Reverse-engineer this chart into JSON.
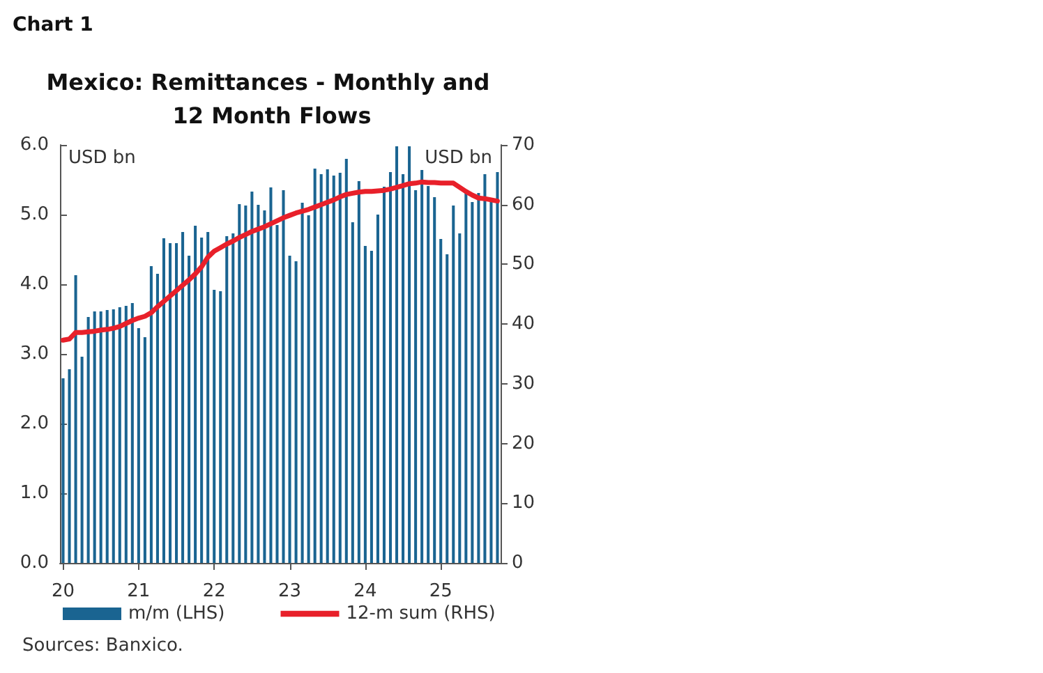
{
  "chart_data": {
    "type": "bar",
    "title": "Mexico: Remittances - Monthly and 12 Month Flows",
    "subtitle": "Chart 1",
    "ylabel": "USD bn",
    "y2label": "USD bn",
    "annotations": [
      "Sources: Banxico."
    ],
    "categories": [
      "20",
      null,
      null,
      null,
      null,
      null,
      null,
      null,
      null,
      null,
      null,
      null,
      "21",
      null,
      null,
      null,
      null,
      null,
      null,
      null,
      null,
      null,
      null,
      null,
      "22",
      null,
      null,
      null,
      null,
      null,
      null,
      null,
      null,
      null,
      null,
      null,
      "23",
      null,
      null,
      null,
      null,
      null,
      null,
      null,
      null,
      null,
      null,
      null,
      "24",
      null,
      null,
      null,
      null,
      null,
      null,
      null,
      null,
      null,
      null,
      null,
      "25",
      null,
      null,
      null,
      null,
      null,
      null,
      null,
      null,
      null
    ],
    "series": [
      {
        "name": "m/m (LHS)",
        "color": "#1a6491",
        "values": [
          2.65,
          2.78,
          4.13,
          2.96,
          3.53,
          3.61,
          3.61,
          3.63,
          3.64,
          3.67,
          3.69,
          3.73,
          3.37,
          3.24,
          4.26,
          4.15,
          4.66,
          4.59,
          4.59,
          4.75,
          4.41,
          4.84,
          4.67,
          4.75,
          3.92,
          3.9,
          4.69,
          4.73,
          5.15,
          5.13,
          5.33,
          5.14,
          5.06,
          5.39,
          4.85,
          5.35,
          4.41,
          4.33,
          5.17,
          4.99,
          5.66,
          5.58,
          5.65,
          5.56,
          5.6,
          5.8,
          4.89,
          5.48,
          4.55,
          4.48,
          5.0,
          5.4,
          5.61,
          5.98,
          5.58,
          5.98,
          5.35,
          5.64,
          5.41,
          5.25,
          4.65,
          4.43,
          5.13,
          4.73,
          5.33,
          5.18,
          5.31,
          5.58,
          5.21,
          5.61
        ]
      },
      {
        "name": "12-m sum (RHS)",
        "type": "line",
        "axis": "y2",
        "color": "#e8202a",
        "values": [
          37.3,
          37.5,
          38.6,
          38.6,
          38.7,
          38.8,
          39.0,
          39.1,
          39.3,
          39.6,
          40.1,
          40.6,
          41.0,
          41.3,
          41.9,
          42.9,
          43.8,
          44.7,
          45.6,
          46.5,
          47.4,
          48.4,
          49.6,
          51.2,
          52.2,
          52.8,
          53.4,
          53.9,
          54.5,
          55.0,
          55.5,
          55.9,
          56.3,
          56.8,
          57.3,
          57.8,
          58.2,
          58.6,
          58.9,
          59.2,
          59.6,
          60.0,
          60.4,
          60.8,
          61.3,
          61.7,
          61.9,
          62.1,
          62.2,
          62.2,
          62.3,
          62.4,
          62.6,
          62.9,
          63.2,
          63.5,
          63.6,
          63.8,
          63.7,
          63.7,
          63.6,
          63.6,
          63.6,
          62.9,
          62.2,
          61.6,
          61.1,
          61.0,
          60.8,
          60.6
        ]
      }
    ],
    "ylim": [
      0,
      6
    ],
    "yticks": [
      {
        "value": 0,
        "label": "0.0"
      },
      {
        "value": 1,
        "label": "1.0"
      },
      {
        "value": 2,
        "label": "2.0"
      },
      {
        "value": 3,
        "label": "3.0"
      },
      {
        "value": 4,
        "label": "4.0"
      },
      {
        "value": 5,
        "label": "5.0"
      },
      {
        "value": 6,
        "label": "6.0"
      }
    ],
    "y2lim": [
      0,
      70
    ],
    "y2ticks": [
      0,
      10,
      20,
      30,
      40,
      50,
      60,
      70
    ],
    "grid": false,
    "legend": "bottom",
    "marker": "none",
    "line_style": "solid"
  }
}
